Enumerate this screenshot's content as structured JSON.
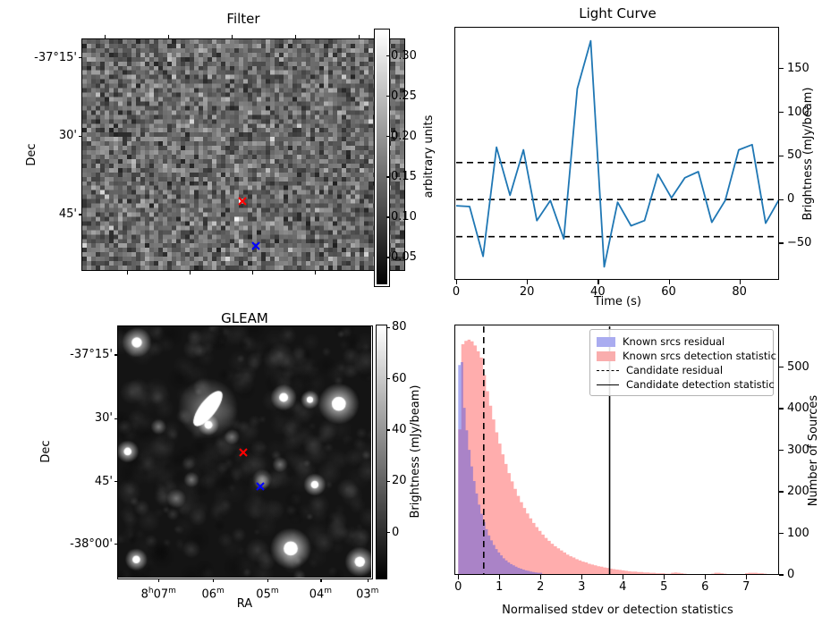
{
  "colors": {
    "line_blue": "#1f77b4",
    "hist_blue_fill": "rgba(85,89,225,0.5)",
    "hist_pink_fill": "rgba(255,91,91,0.5)",
    "legend_blue_patch": "#aaacf0",
    "legend_pink_patch": "#f9adad",
    "marker_red": "#ff0000",
    "marker_blue": "#0000ff",
    "dashed_line": "#000000"
  },
  "chart_data": [
    {
      "id": "filter",
      "type": "image",
      "title": "Filter",
      "ylabel": "Dec",
      "colorbar": {
        "label": "arbitrary units",
        "ticks": [
          {
            "label": "0.30",
            "f": 0.105
          },
          {
            "label": "0.25",
            "f": 0.264
          },
          {
            "label": "0.20",
            "f": 0.423
          },
          {
            "label": "0.15",
            "f": 0.583
          },
          {
            "label": "0.10",
            "f": 0.742
          },
          {
            "label": "0.05",
            "f": 0.901
          }
        ]
      },
      "yticks": [
        {
          "label": "-37°15'",
          "f": 0.081
        },
        {
          "label": "30'",
          "f": 0.419
        },
        {
          "label": "45'",
          "f": 0.76
        }
      ],
      "xticks_top_f": [
        0.07,
        0.267,
        0.464,
        0.661,
        0.858
      ],
      "xticks_bottom_f": [
        0.139,
        0.333,
        0.528,
        0.722,
        0.917
      ],
      "markers": [
        {
          "name": "candidate-position",
          "symbol": "x",
          "color": "#ff0000",
          "fx": 0.497,
          "fy": 0.7
        },
        {
          "name": "reference-position",
          "symbol": "x",
          "color": "#0000ff",
          "fx": 0.539,
          "fy": 0.895
        }
      ]
    },
    {
      "id": "light_curve",
      "type": "line",
      "title": "Light Curve",
      "xlabel": "Time (s)",
      "ylabel": "Brightness (mJy/beam)",
      "x_start": 0,
      "x_step": 3.8,
      "y": [
        -7,
        -8,
        -65,
        60,
        5,
        57,
        -24,
        -1,
        -45,
        127,
        182,
        -77,
        -3,
        -30,
        -24,
        29,
        2,
        25,
        32,
        -26,
        -1,
        57,
        63,
        -27,
        0
      ],
      "hlines": [
        42.5,
        0,
        -42.5
      ],
      "xlim": [
        0,
        91.2
      ],
      "ylim": [
        -92,
        196
      ],
      "xticks": [
        {
          "label": "0",
          "v": 0
        },
        {
          "label": "20",
          "v": 20
        },
        {
          "label": "40",
          "v": 40
        },
        {
          "label": "60",
          "v": 60
        },
        {
          "label": "80",
          "v": 80
        }
      ],
      "yticks": [
        {
          "label": "150",
          "v": 150
        },
        {
          "label": "100",
          "v": 100
        },
        {
          "label": "50",
          "v": 50
        },
        {
          "label": "0",
          "v": 0
        },
        {
          "label": "−50",
          "v": -50
        }
      ],
      "line_color": "#1f77b4"
    },
    {
      "id": "gleam",
      "type": "image",
      "title": "GLEAM",
      "xlabel": "RA",
      "ylabel": "Dec",
      "colorbar": {
        "label": "Brightness (mJy/beam)",
        "ticks": [
          {
            "label": "80",
            "f": 0.011
          },
          {
            "label": "60",
            "f": 0.214
          },
          {
            "label": "40",
            "f": 0.417
          },
          {
            "label": "20",
            "f": 0.62
          },
          {
            "label": "0",
            "f": 0.823
          }
        ]
      },
      "yticks": [
        {
          "label": "-37°15'",
          "f": 0.114
        },
        {
          "label": "30'",
          "f": 0.368
        },
        {
          "label": "45'",
          "f": 0.618
        },
        {
          "label": "-38°00'",
          "f": 0.868
        }
      ],
      "xticks": [
        {
          "label": "8^h07^m",
          "f": 0.16
        },
        {
          "label": "06^m",
          "f": 0.375
        },
        {
          "label": "05^m",
          "f": 0.59
        },
        {
          "label": "04^m",
          "f": 0.8
        },
        {
          "label": "03^m",
          "f": 0.985
        }
      ],
      "markers": [
        {
          "name": "candidate-position",
          "symbol": "x",
          "color": "#ff0000",
          "fx": 0.495,
          "fy": 0.502
        },
        {
          "name": "reference-position",
          "symbol": "x",
          "color": "#0000ff",
          "fx": 0.562,
          "fy": 0.636
        }
      ]
    },
    {
      "id": "histogram",
      "type": "histogram",
      "xlabel": "Normalised stdev or detection statistics",
      "ylabel": "Number of Sources",
      "xlim": [
        -0.05,
        7.8
      ],
      "ylim": [
        0,
        598
      ],
      "xticks": [
        {
          "label": "0",
          "v": 0
        },
        {
          "label": "1",
          "v": 1
        },
        {
          "label": "2",
          "v": 2
        },
        {
          "label": "3",
          "v": 3
        },
        {
          "label": "4",
          "v": 4
        },
        {
          "label": "5",
          "v": 5
        },
        {
          "label": "6",
          "v": 6
        },
        {
          "label": "7",
          "v": 7
        }
      ],
      "yticks": [
        {
          "label": "0",
          "v": 0
        },
        {
          "label": "100",
          "v": 100
        },
        {
          "label": "200",
          "v": 200
        },
        {
          "label": "300",
          "v": 300
        },
        {
          "label": "400",
          "v": 400
        },
        {
          "label": "500",
          "v": 500
        }
      ],
      "series": [
        {
          "name": "Known srcs detection statistic",
          "bin_start": 0,
          "bin_width": 0.075,
          "fill": "rgba(255,91,91,0.5)",
          "counts": [
            350,
            555,
            563,
            566,
            562,
            552,
            538,
            523,
            481,
            442,
            407,
            374,
            343,
            316,
            290,
            267,
            245,
            225,
            207,
            190,
            175,
            161,
            148,
            136,
            125,
            115,
            106,
            97,
            89,
            82,
            75,
            69,
            64,
            59,
            54,
            49,
            45,
            42,
            38,
            35,
            32,
            30,
            27,
            25,
            23,
            21,
            20,
            18,
            17,
            15,
            14,
            13,
            12,
            11,
            10,
            9,
            8,
            8,
            7,
            7,
            6,
            6,
            5,
            5,
            4,
            4,
            4,
            3,
            3,
            5,
            6,
            5,
            4,
            3,
            2,
            2,
            0,
            0,
            0,
            0,
            0,
            2,
            3,
            5,
            5,
            4,
            3,
            2,
            2,
            0,
            0,
            0,
            2,
            4,
            5,
            5,
            5,
            4,
            4,
            3
          ]
        },
        {
          "name": "Known srcs residual",
          "bin_start": 0,
          "bin_width": 0.06,
          "fill": "rgba(85,89,225,0.5)",
          "counts": [
            505,
            512,
            402,
            348,
            301,
            261,
            226,
            196,
            169,
            147,
            127,
            110,
            95,
            83,
            72,
            62,
            54,
            47,
            40,
            35,
            30,
            26,
            23,
            20,
            17,
            15,
            13,
            11,
            10,
            8,
            7,
            6,
            5,
            5
          ]
        }
      ],
      "vlines": [
        {
          "name": "Candidate residual",
          "style": "dashed",
          "x": 0.62
        },
        {
          "name": "Candidate detection statistic",
          "style": "solid",
          "x": 3.68
        }
      ],
      "legend": [
        {
          "label": "Known srcs residual",
          "swatch": "patch",
          "color": "#aaacf0"
        },
        {
          "label": "Known srcs detection statistic",
          "swatch": "patch",
          "color": "#f9adad"
        },
        {
          "label": "Candidate residual",
          "swatch": "dashed"
        },
        {
          "label": "Candidate detection statistic",
          "swatch": "solid"
        }
      ]
    }
  ]
}
